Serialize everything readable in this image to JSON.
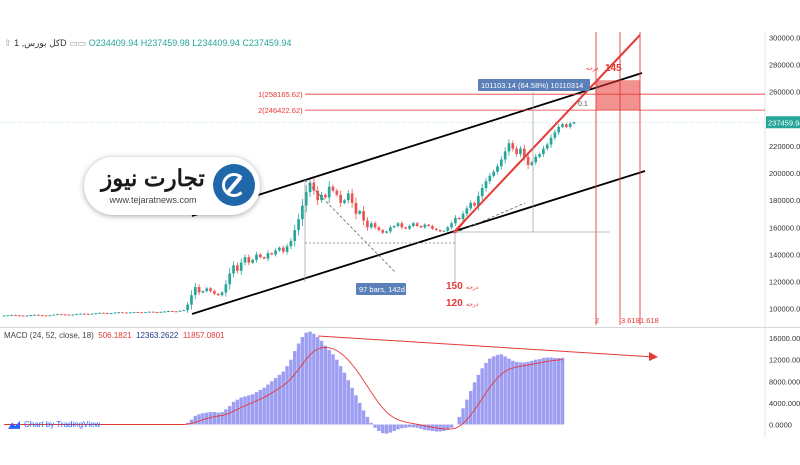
{
  "header": {
    "symbol": "کل بورس, 1D",
    "ohlc_text": "O234409.94 H237459.98 L234409.94 C237459.94"
  },
  "logo": {
    "name": "تجارت نیوز",
    "url": "www.tejaratnews.com"
  },
  "macd": {
    "label": "MACD (24, 52, close, 18)",
    "value1": "506.1821",
    "value2": "12363.2622",
    "value3": "11857.0801"
  },
  "credit": "Chart by TradingView",
  "colors": {
    "up": "#26a69a",
    "down": "#ef5350",
    "fib": "#e53935",
    "channel": "#000000",
    "histogram": "#8c8cf0",
    "signal": "#e53935",
    "last_price": "#26a69a"
  },
  "chart_data": [
    {
      "type": "candlestick",
      "price_axis": {
        "ticks": [
          100000,
          120000,
          140000,
          160000,
          180000,
          200000,
          220000,
          240000,
          260000,
          280000,
          300000
        ],
        "tick_labels": [
          "100000.00",
          "120000.00",
          "140000.00",
          "160000.00",
          "180000.00",
          "200000.00",
          "220000.00",
          "240000.00",
          "260000.00",
          "280000.00",
          "300000.00"
        ],
        "range": [
          88000,
          304000
        ]
      },
      "last_price": {
        "value": 237459.94,
        "label": "237459.94"
      },
      "close_series": [
        95000,
        95200,
        95400,
        95200,
        95000,
        94800,
        95000,
        95300,
        95500,
        95300,
        95100,
        94900,
        95200,
        95600,
        96000,
        95800,
        95600,
        95400,
        95700,
        96100,
        96400,
        96200,
        96000,
        96300,
        96700,
        97000,
        96800,
        96500,
        96800,
        97200,
        97400,
        97200,
        97000,
        97300,
        97600,
        97400,
        97200,
        97500,
        97800,
        97600,
        97400,
        97700,
        98000,
        98300,
        98100,
        98000,
        98500,
        99000,
        103000,
        110000,
        116000,
        112000,
        113000,
        115000,
        113000,
        111000,
        110000,
        112000,
        118000,
        126000,
        132000,
        128000,
        134000,
        138000,
        134000,
        136000,
        140000,
        138000,
        137000,
        141000,
        140000,
        143000,
        145000,
        142000,
        146000,
        150000,
        158000,
        166000,
        176000,
        186000,
        193000,
        187000,
        180000,
        184000,
        182000,
        190000,
        187000,
        184000,
        178000,
        180000,
        185000,
        178000,
        170000,
        172000,
        165000,
        160000,
        163000,
        160000,
        158000,
        156000,
        157000,
        160000,
        161000,
        163000,
        160000,
        159000,
        161000,
        163000,
        161000,
        160000,
        162000,
        161000,
        159000,
        158000,
        157000,
        157500,
        160000,
        163000,
        167000,
        166000,
        170000,
        174000,
        178000,
        176000,
        183000,
        189000,
        194000,
        198000,
        201000,
        205000,
        210000,
        216000,
        222000,
        218000,
        214000,
        218000,
        212000,
        206000,
        208000,
        212000,
        214000,
        218000,
        221000,
        226000,
        230000,
        234000,
        236000,
        234000,
        236500,
        237459.94
      ],
      "volatility": 0.012,
      "annotations": {
        "fib_levels": [
          {
            "label": "1(258165.62)",
            "price": 258165.62
          },
          {
            "label": "2(246422.62)",
            "price": 246422.62
          }
        ],
        "measure_label": "101103.14 (64.58%) 10110314",
        "bars_label": "97 bars, 142d",
        "angle_labels": [
          {
            "number": "145",
            "unit": "درجه"
          },
          {
            "number": "150",
            "unit": "درجه"
          },
          {
            "number": "120",
            "unit": "درجه"
          }
        ],
        "fib_time_labels": [
          "2",
          "3.618",
          "1.618"
        ],
        "zone_label": "0.1"
      }
    },
    {
      "type": "bar",
      "name": "MACD",
      "axis": {
        "ticks": [
          0,
          4000,
          8000,
          12000,
          16000
        ],
        "tick_labels": [
          "0.0000",
          "4000.0000",
          "8000.0000",
          "12000.0000",
          "16000.0000"
        ],
        "range": [
          -2500,
          17500
        ]
      },
      "histogram": [
        0,
        0,
        0,
        0,
        0,
        0,
        0,
        0,
        0,
        0,
        0,
        0,
        0,
        0,
        0,
        0,
        0,
        0,
        0,
        0,
        0,
        0,
        0,
        0,
        0,
        0,
        0,
        0,
        0,
        0,
        0,
        0,
        0,
        0,
        0,
        0,
        0,
        0,
        0,
        0,
        0,
        0,
        0,
        0,
        0,
        0,
        0,
        0,
        300,
        900,
        1600,
        1900,
        2100,
        2200,
        2300,
        2300,
        2200,
        2300,
        2800,
        3400,
        4200,
        4600,
        5000,
        5200,
        5400,
        5600,
        6000,
        6400,
        6800,
        7400,
        8000,
        8600,
        9200,
        9800,
        10800,
        12000,
        13600,
        15000,
        16200,
        17000,
        17200,
        16800,
        16200,
        15500,
        14600,
        13800,
        13000,
        12000,
        10800,
        9600,
        8200,
        6800,
        5400,
        4000,
        2600,
        1400,
        300,
        -600,
        -1200,
        -1600,
        -1700,
        -1500,
        -1200,
        -900,
        -700,
        -600,
        -500,
        -500,
        -600,
        -800,
        -1000,
        -1100,
        -1200,
        -1300,
        -1300,
        -1200,
        -1000,
        -600,
        0,
        1400,
        3000,
        4600,
        6200,
        7800,
        9200,
        10400,
        11400,
        12200,
        12600,
        12900,
        13000,
        12600,
        12200,
        11800,
        11600,
        11500,
        11500,
        11600,
        11800,
        12000,
        12100,
        12300,
        12400,
        12400,
        12300,
        12300,
        12363.2622
      ],
      "signal_lag": 0.16
    }
  ]
}
